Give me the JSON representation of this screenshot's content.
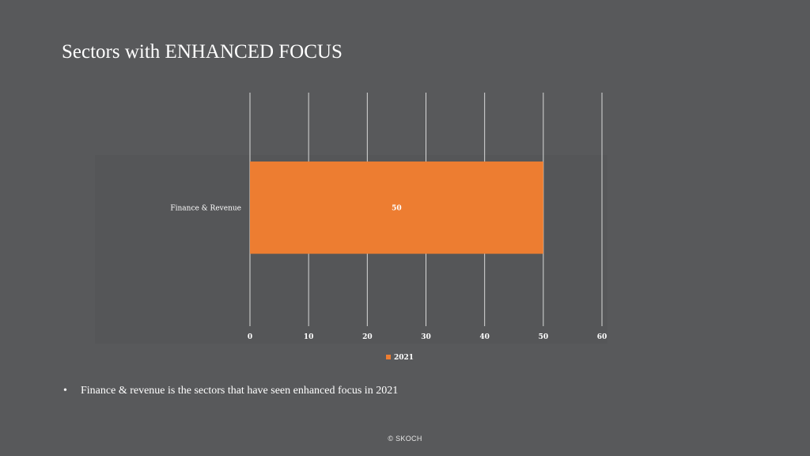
{
  "slide": {
    "title": "Sectors with ENHANCED FOCUS",
    "bullet_marker": "•",
    "bullet_text": "Finance & revenue is the sectors that have seen enhanced focus in 2021",
    "footer": "© SKOCH"
  },
  "colors": {
    "background": "#58595b",
    "bar": "#ed7d31",
    "gridline": "#d9d9d9",
    "text": "#ffffff"
  },
  "chart_data": {
    "type": "bar",
    "orientation": "horizontal",
    "categories": [
      "Finance & Revenue"
    ],
    "series": [
      {
        "name": "2021",
        "values": [
          50
        ]
      }
    ],
    "data_labels": [
      "50"
    ],
    "xlim": [
      0,
      60
    ],
    "x_ticks": [
      "0",
      "10",
      "20",
      "30",
      "40",
      "50",
      "60"
    ],
    "grid": true,
    "legend_position": "bottom",
    "title": "",
    "xlabel": "",
    "ylabel": ""
  }
}
